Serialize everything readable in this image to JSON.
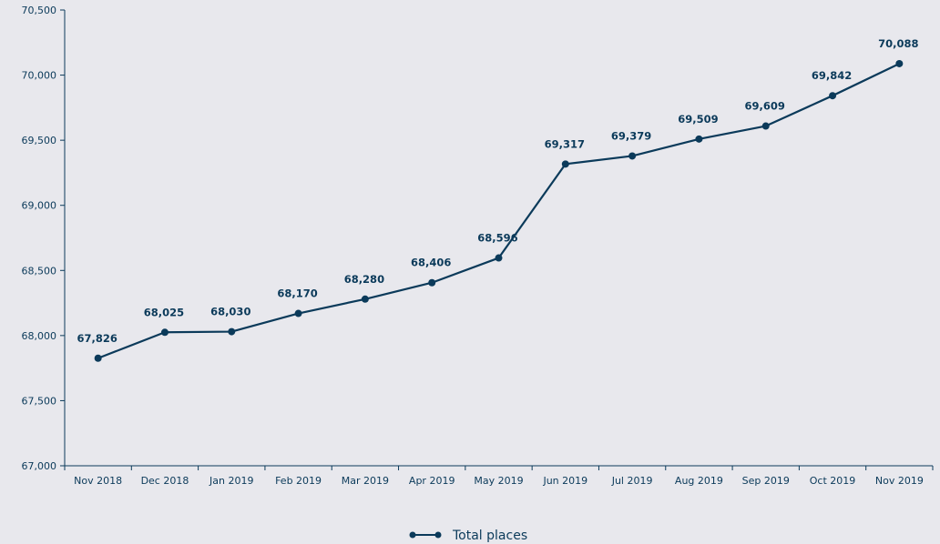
{
  "chart_data": {
    "type": "line",
    "categories": [
      "Nov 2018",
      "Dec 2018",
      "Jan 2019",
      "Feb 2019",
      "Mar 2019",
      "Apr 2019",
      "May 2019",
      "Jun 2019",
      "Jul 2019",
      "Aug 2019",
      "Sep 2019",
      "Oct 2019",
      "Nov 2019"
    ],
    "series": [
      {
        "name": "Total places",
        "values": [
          67826,
          68025,
          68030,
          68170,
          68280,
          68406,
          68596,
          69317,
          69379,
          69509,
          69609,
          69842,
          70088
        ],
        "labels": [
          "67,826",
          "68,025",
          "68,030",
          "68,170",
          "68,280",
          "68,406",
          "68,596",
          "69,317",
          "69,379",
          "69,509",
          "69,609",
          "69,842",
          "70,088"
        ]
      }
    ],
    "ylim": [
      67000,
      70500
    ],
    "yticks": [
      67000,
      67500,
      68000,
      68500,
      69000,
      69500,
      70000,
      70500
    ],
    "ytick_labels": [
      "67,000",
      "67,500",
      "68,000",
      "68,500",
      "69,000",
      "69,500",
      "70,000",
      "70,500"
    ],
    "grid": false,
    "legend_position": "bottom-center",
    "colors": {
      "line": "#0b3a5a",
      "background": "#e8e8ed"
    }
  }
}
